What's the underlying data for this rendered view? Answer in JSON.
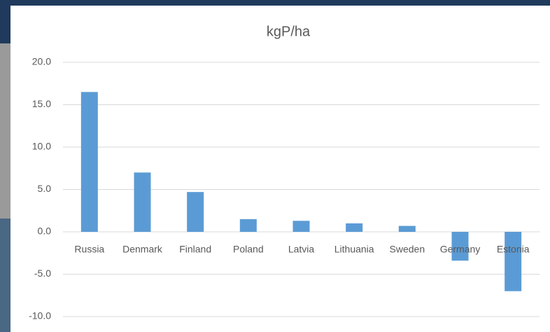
{
  "chart_data": {
    "type": "bar",
    "title": "kgP/ha",
    "categories": [
      "Russia",
      "Denmark",
      "Finland",
      "Poland",
      "Latvia",
      "Lithuania",
      "Sweden",
      "Germany",
      "Estonia"
    ],
    "values": [
      16.5,
      7.0,
      4.7,
      1.5,
      1.3,
      1.0,
      0.7,
      -3.4,
      -7.0
    ],
    "color": "#5b9bd5",
    "ylim": [
      -10,
      20
    ],
    "yticks": [
      {
        "value": -10,
        "label": "-10.0"
      },
      {
        "value": -5,
        "label": "-5.0"
      },
      {
        "value": 0,
        "label": "0.0"
      },
      {
        "value": 5,
        "label": "5.0"
      },
      {
        "value": 10,
        "label": "10.0"
      },
      {
        "value": 15,
        "label": "15.0"
      },
      {
        "value": 20,
        "label": "20.0"
      }
    ],
    "grid": true
  }
}
